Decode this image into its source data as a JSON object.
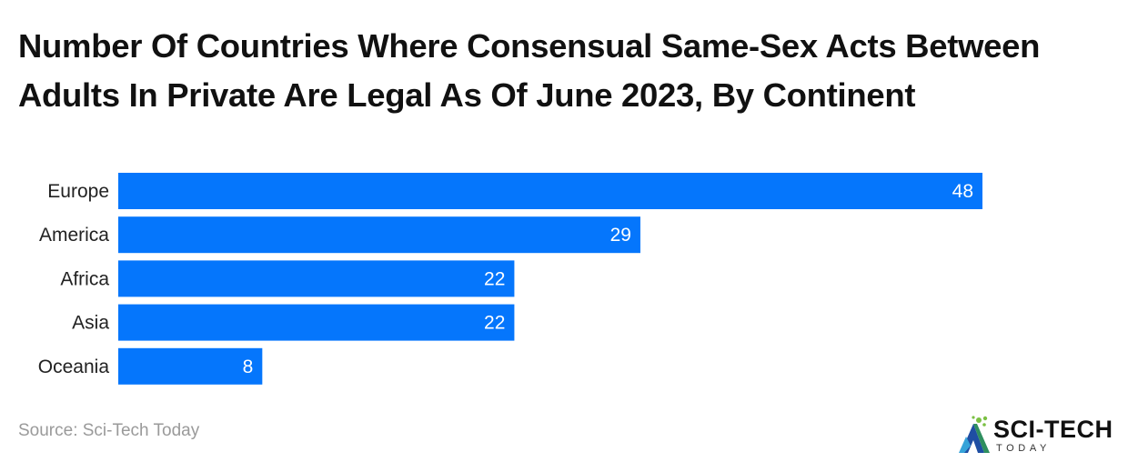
{
  "chart_data": {
    "type": "bar",
    "orientation": "horizontal",
    "title": "Number Of Countries Where Consensual Same-Sex Acts Between Adults In Private Are Legal As Of June 2023, By Continent",
    "categories": [
      "Europe",
      "America",
      "Africa",
      "Asia",
      "Oceania"
    ],
    "values": [
      48,
      29,
      22,
      22,
      8
    ],
    "xlabel": "",
    "ylabel": "",
    "xlim": [
      0,
      48
    ],
    "grid": false,
    "bar_color": "#0576fc",
    "label_color": "#ffffff"
  },
  "footer": {
    "source": "Source: Sci-Tech Today"
  },
  "logo": {
    "name": "SCI-TECH",
    "subtitle": "TODAY"
  }
}
